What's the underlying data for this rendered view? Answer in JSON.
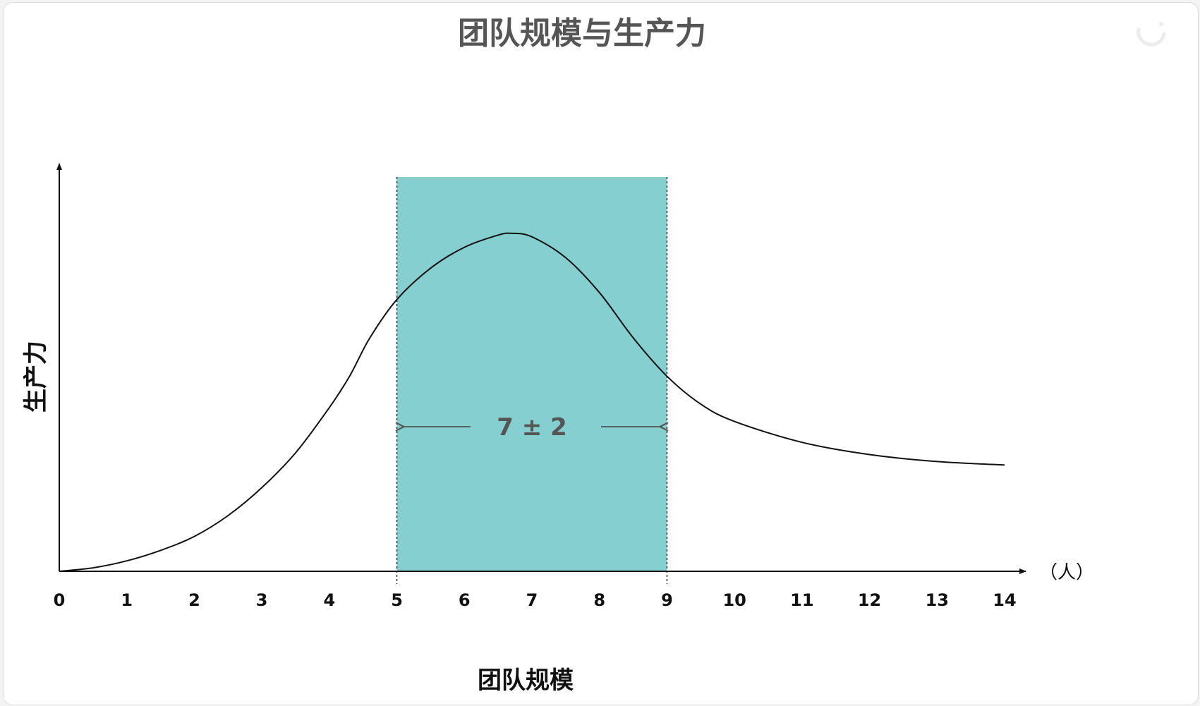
{
  "chart_data": {
    "type": "line",
    "title": "团队规模与生产力",
    "xlabel": "团队规模",
    "ylabel": "生产力",
    "x_unit": "（人）",
    "x_ticks": [
      "0",
      "1",
      "2",
      "3",
      "4",
      "5",
      "6",
      "7",
      "8",
      "9",
      "10",
      "11",
      "12",
      "13",
      "14"
    ],
    "xlim": [
      0,
      14
    ],
    "ylim": [
      0,
      1
    ],
    "grid": false,
    "series": [
      {
        "x": [
          0,
          0.5,
          1,
          1.5,
          2,
          2.5,
          3,
          3.5,
          4,
          4.3,
          4.6,
          5,
          5.5,
          6,
          6.5,
          6.7,
          7,
          7.5,
          8,
          8.5,
          9,
          9.5,
          10,
          11,
          12,
          13,
          14
        ],
        "y": [
          0,
          0.01,
          0.03,
          0.06,
          0.1,
          0.16,
          0.24,
          0.34,
          0.47,
          0.56,
          0.67,
          0.78,
          0.87,
          0.93,
          0.965,
          0.97,
          0.96,
          0.9,
          0.8,
          0.67,
          0.56,
          0.48,
          0.43,
          0.37,
          0.335,
          0.315,
          0.305
        ]
      }
    ],
    "highlight_band": {
      "x_start": 5,
      "x_end": 9,
      "label": "7 ± 2",
      "color": "#86cfd1"
    },
    "colors": {
      "line": "#111111",
      "title": "#555555",
      "axis": "#111111",
      "annotation": "#555555"
    }
  }
}
